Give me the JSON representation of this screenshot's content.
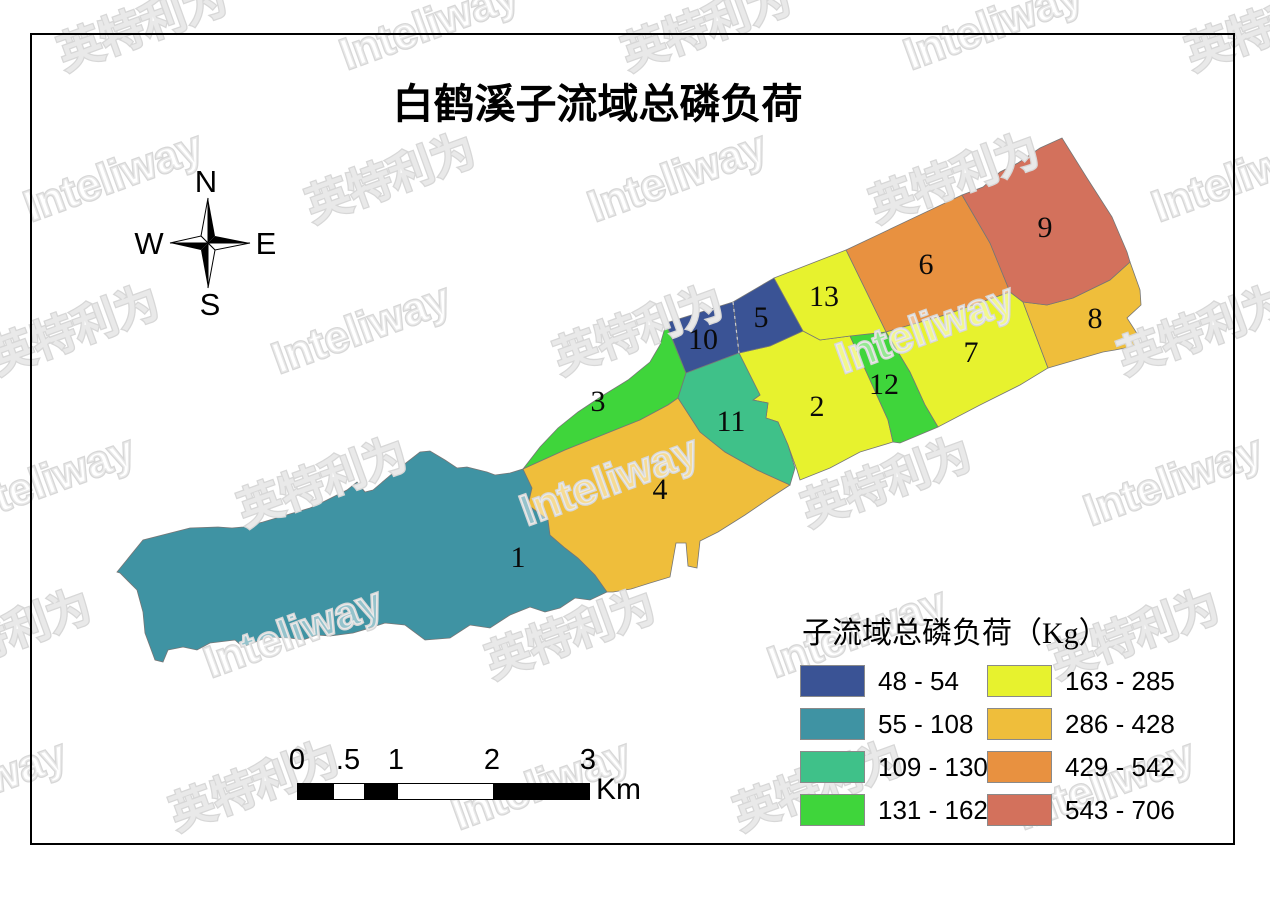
{
  "title": "白鹤溪子流域总磷负荷",
  "compass": {
    "n": "N",
    "e": "E",
    "s": "S",
    "w": "W"
  },
  "map": {
    "regions": [
      {
        "id": "1",
        "label": "1",
        "color": "#3F93A3"
      },
      {
        "id": "2",
        "label": "2",
        "color": "#E7F22E"
      },
      {
        "id": "3",
        "label": "3",
        "color": "#3FD53B"
      },
      {
        "id": "4",
        "label": "4",
        "color": "#EFBE3B"
      },
      {
        "id": "5",
        "label": "5",
        "color": "#3A5395"
      },
      {
        "id": "6",
        "label": "6",
        "color": "#E89140"
      },
      {
        "id": "7",
        "label": "7",
        "color": "#E7F22E"
      },
      {
        "id": "8",
        "label": "8",
        "color": "#EFBE3B"
      },
      {
        "id": "9",
        "label": "9",
        "color": "#D3715C"
      },
      {
        "id": "10",
        "label": "10",
        "color": "#3A5395"
      },
      {
        "id": "11",
        "label": "11",
        "color": "#3FC189"
      },
      {
        "id": "12",
        "label": "12",
        "color": "#3FD53B"
      },
      {
        "id": "13",
        "label": "13",
        "color": "#E7F22E"
      }
    ]
  },
  "legend": {
    "title": "子流域总磷负荷（Kg）",
    "entries": [
      {
        "range": "48 - 54",
        "color": "#3A5395"
      },
      {
        "range": "55 - 108",
        "color": "#3F93A3"
      },
      {
        "range": "109 - 130",
        "color": "#3FC189"
      },
      {
        "range": "131 - 162",
        "color": "#3FD53B"
      },
      {
        "range": "163 - 285",
        "color": "#E7F22E"
      },
      {
        "range": "286 - 428",
        "color": "#EFBE3B"
      },
      {
        "range": "429 - 542",
        "color": "#E89140"
      },
      {
        "range": "543 - 706",
        "color": "#D3715C"
      }
    ]
  },
  "scalebar": {
    "labels": [
      "0",
      ".5",
      "1",
      "2",
      "3"
    ],
    "unit": "Km"
  },
  "watermark": {
    "cn": "英特利为",
    "en": "Inteliway"
  }
}
